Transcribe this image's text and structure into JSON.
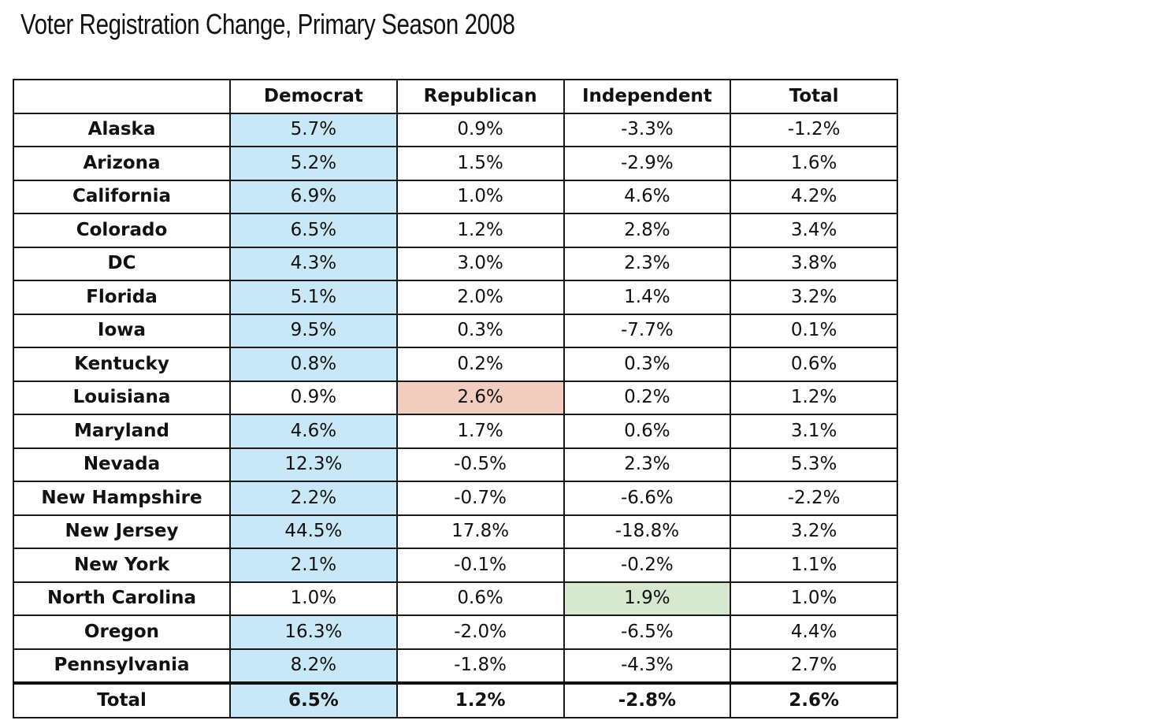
{
  "chart_data": {
    "type": "table",
    "title": "Voter Registration Change, Primary Season 2008",
    "columns": [
      "",
      "Democrat",
      "Republican",
      "Independent",
      "Total"
    ],
    "rows": [
      {
        "state": "Alaska",
        "values": [
          "5.7%",
          "0.9%",
          "-3.3%",
          "-1.2%"
        ],
        "highlight": [
          "blue",
          "",
          "",
          ""
        ]
      },
      {
        "state": "Arizona",
        "values": [
          "5.2%",
          "1.5%",
          "-2.9%",
          "1.6%"
        ],
        "highlight": [
          "blue",
          "",
          "",
          ""
        ]
      },
      {
        "state": "California",
        "values": [
          "6.9%",
          "1.0%",
          "4.6%",
          "4.2%"
        ],
        "highlight": [
          "blue",
          "",
          "",
          ""
        ]
      },
      {
        "state": "Colorado",
        "values": [
          "6.5%",
          "1.2%",
          "2.8%",
          "3.4%"
        ],
        "highlight": [
          "blue",
          "",
          "",
          ""
        ]
      },
      {
        "state": "DC",
        "values": [
          "4.3%",
          "3.0%",
          "2.3%",
          "3.8%"
        ],
        "highlight": [
          "blue",
          "",
          "",
          ""
        ]
      },
      {
        "state": "Florida",
        "values": [
          "5.1%",
          "2.0%",
          "1.4%",
          "3.2%"
        ],
        "highlight": [
          "blue",
          "",
          "",
          ""
        ]
      },
      {
        "state": "Iowa",
        "values": [
          "9.5%",
          "0.3%",
          "-7.7%",
          "0.1%"
        ],
        "highlight": [
          "blue",
          "",
          "",
          ""
        ]
      },
      {
        "state": "Kentucky",
        "values": [
          "0.8%",
          "0.2%",
          "0.3%",
          "0.6%"
        ],
        "highlight": [
          "blue",
          "",
          "",
          ""
        ]
      },
      {
        "state": "Louisiana",
        "values": [
          "0.9%",
          "2.6%",
          "0.2%",
          "1.2%"
        ],
        "highlight": [
          "",
          "red",
          "",
          ""
        ]
      },
      {
        "state": "Maryland",
        "values": [
          "4.6%",
          "1.7%",
          "0.6%",
          "3.1%"
        ],
        "highlight": [
          "blue",
          "",
          "",
          ""
        ]
      },
      {
        "state": "Nevada",
        "values": [
          "12.3%",
          "-0.5%",
          "2.3%",
          "5.3%"
        ],
        "highlight": [
          "blue",
          "",
          "",
          ""
        ]
      },
      {
        "state": "New Hampshire",
        "values": [
          "2.2%",
          "-0.7%",
          "-6.6%",
          "-2.2%"
        ],
        "highlight": [
          "blue",
          "",
          "",
          ""
        ]
      },
      {
        "state": "New Jersey",
        "values": [
          "44.5%",
          "17.8%",
          "-18.8%",
          "3.2%"
        ],
        "highlight": [
          "blue",
          "",
          "",
          ""
        ]
      },
      {
        "state": "New York",
        "values": [
          "2.1%",
          "-0.1%",
          "-0.2%",
          "1.1%"
        ],
        "highlight": [
          "blue",
          "",
          "",
          ""
        ]
      },
      {
        "state": "North Carolina",
        "values": [
          "1.0%",
          "0.6%",
          "1.9%",
          "1.0%"
        ],
        "highlight": [
          "",
          "",
          "green",
          ""
        ]
      },
      {
        "state": "Oregon",
        "values": [
          "16.3%",
          "-2.0%",
          "-6.5%",
          "4.4%"
        ],
        "highlight": [
          "blue",
          "",
          "",
          ""
        ]
      },
      {
        "state": "Pennsylvania",
        "values": [
          "8.2%",
          "-1.8%",
          "-4.3%",
          "2.7%"
        ],
        "highlight": [
          "blue",
          "",
          "",
          ""
        ]
      }
    ],
    "total_row": {
      "state": "Total",
      "values": [
        "6.5%",
        "1.2%",
        "-2.8%",
        "2.6%"
      ],
      "highlight": [
        "blue",
        "",
        "",
        ""
      ]
    },
    "highlight_colors": {
      "blue": "#c9e8f7",
      "red": "#f2cdbf",
      "green": "#d6e9cf"
    }
  }
}
